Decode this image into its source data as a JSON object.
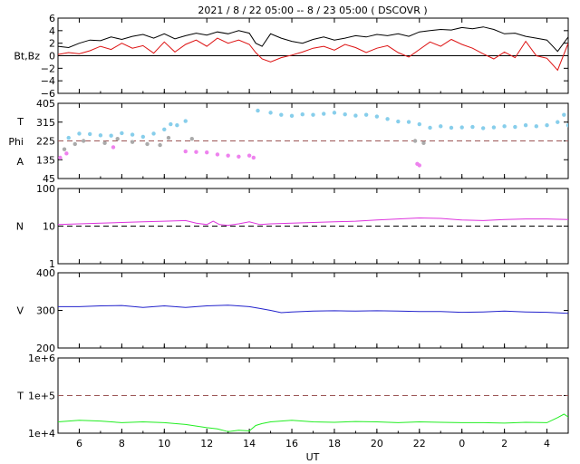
{
  "title": "2021 /  8 / 22   05:00  --  8 / 23   05:00 ( DSCOVR )",
  "xlabel": "UT",
  "x_ticks": [
    "6",
    "8",
    "10",
    "12",
    "14",
    "16",
    "18",
    "20",
    "22",
    "0",
    "2",
    "4"
  ],
  "colors": {
    "bt": "#000000",
    "bz": "#dd1111",
    "theta": "#87ceeb",
    "phi_away": "#aaaaaa",
    "phi_toward": "#ee82ee",
    "density": "#dd33dd",
    "speed": "#2222cc",
    "temperature": "#22ee22",
    "ref_dash": "#9b5555"
  },
  "chart_data": [
    {
      "type": "line",
      "panel": "magnetic-field",
      "ylabel": "Bt,Bz",
      "ylim": [
        -6,
        6
      ],
      "y_ticks": [
        "6",
        "4",
        "2",
        "0",
        "−2",
        "−4",
        "−6"
      ],
      "x_range_hours": [
        5,
        29
      ],
      "reference_line": 0,
      "series": [
        {
          "name": "Bt",
          "color": "#000000",
          "x": [
            5,
            5.5,
            6,
            6.5,
            7,
            7.5,
            8,
            8.5,
            9,
            9.5,
            10,
            10.5,
            11,
            11.5,
            12,
            12.5,
            13,
            13.5,
            14,
            14.3,
            14.6,
            15,
            15.5,
            16,
            16.5,
            17,
            17.5,
            18,
            18.5,
            19,
            19.5,
            20,
            20.5,
            21,
            21.5,
            22,
            22.5,
            23,
            23.5,
            24,
            24.5,
            25,
            25.5,
            26,
            26.5,
            27,
            27.5,
            28,
            28.5,
            29
          ],
          "y": [
            1.5,
            1.3,
            2.0,
            2.5,
            2.4,
            3.0,
            2.6,
            3.1,
            3.4,
            2.8,
            3.5,
            2.7,
            3.2,
            3.6,
            3.3,
            3.8,
            3.5,
            4.0,
            3.6,
            2.0,
            1.5,
            3.5,
            2.8,
            2.3,
            2.0,
            2.6,
            3.0,
            2.5,
            2.8,
            3.2,
            3.0,
            3.4,
            3.2,
            3.5,
            3.1,
            3.8,
            4.0,
            4.2,
            4.1,
            4.5,
            4.3,
            4.6,
            4.2,
            3.5,
            3.6,
            3.1,
            2.8,
            2.5,
            0.7,
            3.0
          ]
        },
        {
          "name": "Bz",
          "color": "#dd1111",
          "x": [
            5,
            5.5,
            6,
            6.5,
            7,
            7.5,
            8,
            8.5,
            9,
            9.5,
            10,
            10.5,
            11,
            11.5,
            12,
            12.5,
            13,
            13.5,
            14,
            14.3,
            14.6,
            15,
            15.5,
            16,
            16.5,
            17,
            17.5,
            18,
            18.5,
            19,
            19.5,
            20,
            20.5,
            21,
            21.5,
            22,
            22.5,
            23,
            23.5,
            24,
            24.5,
            25,
            25.5,
            26,
            26.5,
            27,
            27.5,
            28,
            28.5,
            29
          ],
          "y": [
            0.2,
            0.5,
            0.3,
            0.8,
            1.5,
            1.0,
            2.0,
            1.2,
            1.6,
            0.4,
            2.2,
            0.6,
            1.8,
            2.5,
            1.5,
            2.8,
            2.0,
            2.5,
            1.8,
            0.5,
            -0.5,
            -1.0,
            -0.3,
            0.1,
            0.6,
            1.2,
            1.5,
            0.9,
            1.8,
            1.3,
            0.5,
            1.2,
            1.6,
            0.5,
            -0.2,
            1.0,
            2.2,
            1.5,
            2.6,
            1.8,
            1.2,
            0.3,
            -0.5,
            0.6,
            -0.3,
            2.3,
            0.0,
            -0.4,
            -2.3,
            2.0
          ]
        }
      ]
    },
    {
      "type": "scatter",
      "panel": "field-angles",
      "ylabels": [
        "T",
        "Phi",
        "A"
      ],
      "ylim": [
        45,
        405
      ],
      "y_ticks": [
        "405",
        "315",
        "225",
        "135",
        "45"
      ],
      "x_range_hours": [
        5,
        29
      ],
      "reference_line": 225,
      "series": [
        {
          "name": "theta",
          "color": "#87ceeb",
          "x": [
            5.5,
            6,
            6.5,
            7,
            7.5,
            8,
            8.5,
            9,
            9.5,
            10,
            10.3,
            10.6,
            11,
            14.4,
            15,
            15.5,
            16,
            16.5,
            17,
            17.5,
            18,
            18.5,
            19,
            19.5,
            20,
            20.5,
            21,
            21.5,
            22,
            22.5,
            23,
            23.5,
            24,
            24.5,
            25,
            25.5,
            26,
            26.5,
            27,
            27.5,
            28,
            28.5,
            28.8,
            29
          ],
          "y": [
            240,
            260,
            258,
            252,
            250,
            262,
            255,
            245,
            260,
            280,
            305,
            300,
            320,
            370,
            360,
            350,
            345,
            352,
            350,
            355,
            360,
            352,
            346,
            350,
            342,
            330,
            318,
            316,
            305,
            288,
            295,
            288,
            290,
            292,
            286,
            290,
            295,
            292,
            300,
            295,
            300,
            315,
            350,
            300
          ]
        },
        {
          "name": "phi_away",
          "color": "#aaaaaa",
          "x": [
            5.3,
            5.8,
            6.2,
            7.2,
            7.8,
            8.5,
            9.2,
            9.8,
            10.2,
            11.3,
            21.8,
            22.2
          ],
          "y": [
            185,
            210,
            225,
            215,
            235,
            220,
            210,
            205,
            240,
            235,
            225,
            215
          ]
        },
        {
          "name": "phi_toward",
          "color": "#ee82ee",
          "x": [
            5.1,
            5.4,
            7.6,
            11,
            11.5,
            12,
            12.5,
            13,
            13.5,
            14,
            14.2,
            21.9,
            22
          ],
          "y": [
            145,
            165,
            195,
            175,
            172,
            170,
            160,
            155,
            150,
            155,
            145,
            115,
            108
          ]
        }
      ]
    },
    {
      "type": "line",
      "panel": "density",
      "ylabel": "N",
      "scale": "log",
      "ylim": [
        1,
        100
      ],
      "y_ticks": [
        "100",
        "10",
        "1"
      ],
      "x_range_hours": [
        5,
        29
      ],
      "reference_line": 10,
      "series": [
        {
          "name": "N",
          "color": "#dd33dd",
          "x": [
            5,
            6,
            7,
            8,
            9,
            10,
            11,
            11.5,
            12,
            12.3,
            12.6,
            13,
            13.5,
            14,
            14.5,
            15,
            16,
            17,
            18,
            19,
            20,
            21,
            22,
            23,
            24,
            25,
            26,
            27,
            28,
            29
          ],
          "y": [
            11,
            11.5,
            12,
            12.5,
            13,
            13.5,
            14,
            12,
            11,
            13.5,
            11,
            10.5,
            11.5,
            13,
            11,
            11.5,
            12,
            12.5,
            13,
            13.5,
            14.5,
            15.5,
            16.5,
            16,
            14.5,
            14,
            15,
            15.5,
            15.5,
            15
          ]
        }
      ]
    },
    {
      "type": "line",
      "panel": "speed",
      "ylabel": "V",
      "ylim": [
        200,
        400
      ],
      "y_ticks": [
        "400",
        "300",
        "200"
      ],
      "x_range_hours": [
        5,
        29
      ],
      "series": [
        {
          "name": "V",
          "color": "#2222cc",
          "x": [
            5,
            6,
            7,
            8,
            9,
            10,
            11,
            12,
            13,
            14,
            14.5,
            15,
            15.5,
            16,
            17,
            18,
            19,
            20,
            21,
            22,
            23,
            24,
            25,
            26,
            27,
            28,
            29
          ],
          "y": [
            310,
            310,
            312,
            313,
            308,
            312,
            308,
            312,
            314,
            310,
            305,
            300,
            294,
            296,
            298,
            299,
            298,
            299,
            298,
            297,
            297,
            295,
            296,
            298,
            296,
            295,
            292
          ]
        }
      ]
    },
    {
      "type": "line",
      "panel": "temperature",
      "ylabel": "T",
      "scale": "log",
      "ylim": [
        10000,
        1000000
      ],
      "y_ticks": [
        "1e+6",
        "1e+5",
        "1e+4"
      ],
      "x_range_hours": [
        5,
        29
      ],
      "reference_line": 100000,
      "series": [
        {
          "name": "T",
          "color": "#22ee22",
          "x": [
            5,
            6,
            7,
            8,
            9,
            10,
            11,
            12,
            12.5,
            13,
            13.5,
            14,
            14.3,
            14.6,
            15,
            16,
            17,
            18,
            19,
            20,
            21,
            22,
            23,
            24,
            25,
            26,
            27,
            28,
            28.5,
            28.8,
            29
          ],
          "y": [
            20000,
            22000,
            21000,
            19000,
            20000,
            19000,
            17000,
            14000,
            13000,
            11000,
            12000,
            11500,
            16000,
            18000,
            20000,
            22000,
            20000,
            19500,
            20500,
            20000,
            19000,
            20000,
            19500,
            19000,
            19000,
            18500,
            19500,
            19000,
            26000,
            32000,
            27000
          ]
        }
      ]
    }
  ]
}
